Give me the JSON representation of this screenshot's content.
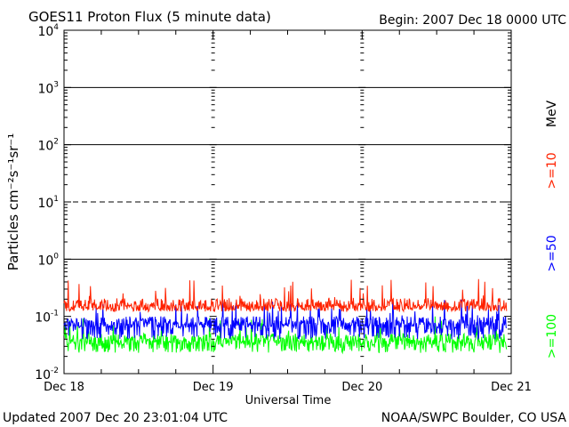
{
  "chart_data": {
    "type": "line",
    "title": "GOES11 Proton Flux (5 minute data)",
    "begin_label": "Begin: 2007 Dec 18 0000 UTC",
    "xlabel": "Universal Time",
    "ylabel": "Particles cm⁻²s⁻¹sr⁻¹",
    "y_scale": "log",
    "ylim": [
      0.01,
      10000
    ],
    "y_ticks": [
      {
        "value": 0.01,
        "base": "10",
        "exp": "-2"
      },
      {
        "value": 0.1,
        "base": "10",
        "exp": "-1"
      },
      {
        "value": 1,
        "base": "10",
        "exp": "0"
      },
      {
        "value": 10,
        "base": "10",
        "exp": "1"
      },
      {
        "value": 100,
        "base": "10",
        "exp": "2"
      },
      {
        "value": 1000,
        "base": "10",
        "exp": "3"
      },
      {
        "value": 10000,
        "base": "10",
        "exp": "4"
      }
    ],
    "x_ticks": [
      "Dec 18",
      "Dec 19",
      "Dec 20",
      "Dec 21"
    ],
    "xlim_days": [
      0,
      3
    ],
    "threshold_lines": [
      {
        "value": 1,
        "style": "solid"
      },
      {
        "value": 10,
        "style": "dashed"
      },
      {
        "value": 100,
        "style": "solid"
      },
      {
        "value": 1000,
        "style": "solid"
      }
    ],
    "grid": false,
    "series": [
      {
        "name": ">=10",
        "color": "#ff2200",
        "typical": 0.16,
        "low": 0.12,
        "high": 0.45
      },
      {
        "name": ">=50",
        "color": "#0000ff",
        "typical": 0.08,
        "low": 0.04,
        "high": 0.2
      },
      {
        "name": ">=100",
        "color": "#00ff00",
        "typical": 0.04,
        "low": 0.023,
        "high": 0.1
      }
    ],
    "legend_unit": "MeV",
    "legend_placement": "right"
  },
  "footer": {
    "updated": "Updated 2007 Dec 20 23:01:04 UTC",
    "source": "NOAA/SWPC Boulder, CO USA"
  }
}
